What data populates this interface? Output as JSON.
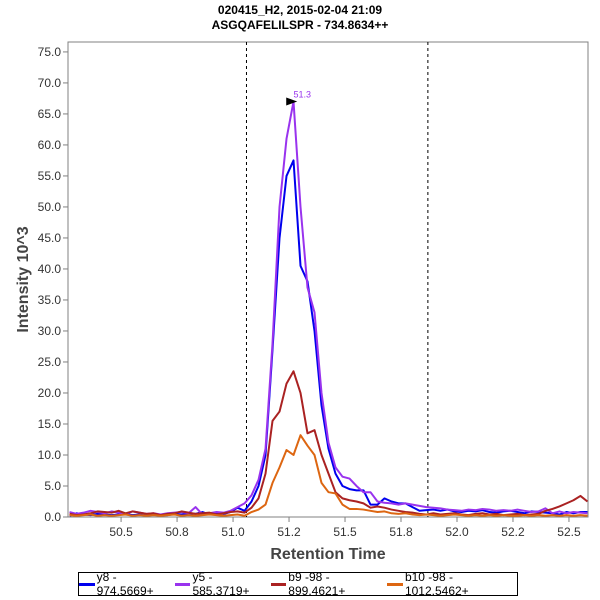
{
  "chart_data": {
    "type": "line",
    "title": "020415_H2, 2015-02-04 21:09",
    "subtitle": "ASGQAFELILSPR - 734.8634++",
    "xlabel": "Retention Time",
    "ylabel": "Intensity 10^3",
    "xlim": [
      50.263,
      52.585
    ],
    "ylim": [
      0,
      76.6
    ],
    "x_ticks": [
      50.5,
      50.75,
      51.0,
      51.25,
      51.5,
      51.75,
      52.0,
      52.25,
      52.5
    ],
    "x_tick_labels": [
      "50.5",
      "50.8",
      "51.0",
      "51.2",
      "51.5",
      "51.8",
      "52.0",
      "52.2",
      "52.5"
    ],
    "y_ticks": [
      0,
      5,
      10,
      15,
      20,
      25,
      30,
      35,
      40,
      45,
      50,
      55,
      60,
      65,
      70,
      75
    ],
    "y_tick_labels": [
      "0.0",
      "5.0",
      "10.0",
      "15.0",
      "20.0",
      "25.0",
      "30.0",
      "35.0",
      "40.0",
      "45.0",
      "50.0",
      "55.0",
      "60.0",
      "65.0",
      "70.0",
      "75.0"
    ],
    "x_start": 50.27,
    "x_step": 0.03125,
    "boundaries": [
      51.06,
      51.87
    ],
    "peak_annotation": {
      "label": "51.3",
      "x": 51.3,
      "y": 67,
      "color": "#9933ee"
    },
    "legend_placement": "bottom",
    "series": [
      {
        "name": "y8 - 974.5669+",
        "color": "#0000ee",
        "values": [
          0.2,
          0.6,
          0.4,
          0.3,
          0.5,
          0.4,
          0.3,
          0.4,
          0.5,
          0.3,
          0.4,
          0.3,
          0.4,
          0.3,
          0.3,
          0.5,
          0.4,
          0.6,
          0.5,
          0.8,
          0.4,
          0.7,
          0.5,
          0.8,
          1.5,
          1.0,
          2.5,
          5,
          10,
          27,
          45,
          55,
          57.5,
          40.5,
          38,
          30,
          18,
          11,
          7,
          5,
          4.5,
          4.3,
          4.3,
          2,
          2,
          3,
          2.5,
          2.2,
          2.2,
          1.6,
          1.0,
          1.1,
          1.2,
          1.0,
          1.2,
          0.9,
          0.8,
          1.0,
          0.9,
          1.1,
          0.8,
          0.7,
          0.9,
          1.0,
          0.8,
          0.6,
          0.9,
          0.8,
          0.7,
          0.6,
          0.4,
          0.8,
          0.6,
          0.8,
          0.8
        ]
      },
      {
        "name": "y5 - 585.3719+",
        "color": "#9933ee",
        "values": [
          0.8,
          0.5,
          0.7,
          1.0,
          0.8,
          0.6,
          0.9,
          0.7,
          0.5,
          0.9,
          0.7,
          0.5,
          0.6,
          0.4,
          0.6,
          0.7,
          0.8,
          0.6,
          1.6,
          0.4,
          0.6,
          0.8,
          0.7,
          1.0,
          1.6,
          2.2,
          3.5,
          6,
          11,
          28,
          50,
          61,
          67,
          50,
          37,
          33,
          20,
          12,
          8,
          6.5,
          6.2,
          5,
          4,
          4,
          2.5,
          2.3,
          2.2,
          2.0,
          2.2,
          2.0,
          1.8,
          1.6,
          1.5,
          1.4,
          1.2,
          1.1,
          1.0,
          1.2,
          1.1,
          1.3,
          1.2,
          1.0,
          1.1,
          1.0,
          1.2,
          1.0,
          0.8,
          0.9,
          1.4,
          0.6,
          0.9,
          0.6,
          0.8,
          0.7,
          0.6
        ]
      },
      {
        "name": "b9 -98 - 899.4621+",
        "color": "#aa2222",
        "values": [
          0.5,
          0.3,
          0.4,
          0.6,
          0.9,
          0.8,
          0.7,
          1.0,
          0.6,
          0.9,
          0.7,
          0.5,
          0.6,
          0.3,
          0.5,
          0.6,
          0.9,
          0.7,
          0.5,
          0.6,
          0.7,
          0.4,
          0.6,
          0.8,
          0.9,
          0.7,
          1.5,
          3,
          7,
          15.5,
          17,
          21.5,
          23.5,
          20,
          13.5,
          14,
          10,
          7,
          4,
          3,
          2.7,
          2.5,
          2.2,
          1.5,
          1.7,
          1.5,
          1.2,
          1.0,
          0.8,
          0.7,
          0.5,
          0.4,
          0.6,
          0.4,
          0.5,
          0.6,
          0.4,
          0.3,
          0.5,
          0.6,
          0.4,
          0.5,
          0.3,
          0.4,
          0.5,
          0.3,
          0.4,
          0.5,
          1.0,
          1.3,
          1.7,
          2.2,
          2.7,
          3.4,
          2.5
        ]
      },
      {
        "name": "b10 -98 - 1012.5462+",
        "color": "#dd6611",
        "values": [
          0.3,
          0.2,
          0.3,
          0.4,
          0.2,
          0.3,
          0.2,
          0.3,
          0.4,
          0.2,
          0.3,
          0.2,
          0.3,
          0.2,
          0.3,
          0.4,
          0.2,
          0.3,
          0.2,
          0.3,
          0.4,
          0.3,
          0.2,
          0.3,
          0.4,
          0.2,
          0.8,
          1.2,
          2,
          5.5,
          8,
          10.8,
          10,
          13.2,
          11.5,
          10,
          5.5,
          4,
          3.8,
          2.0,
          1.3,
          1.3,
          1.2,
          1.0,
          0.8,
          0.9,
          0.6,
          0.5,
          0.6,
          0.4,
          0.3,
          0.4,
          0.3,
          0.2,
          0.3,
          0.4,
          0.3,
          0.2,
          0.3,
          0.2,
          0.3,
          0.2,
          0.3,
          0.2,
          0.2,
          0.3,
          0.2,
          0.3,
          0.2,
          0.3,
          0.2,
          0.3,
          0.2,
          0.3,
          0.2
        ]
      }
    ]
  }
}
